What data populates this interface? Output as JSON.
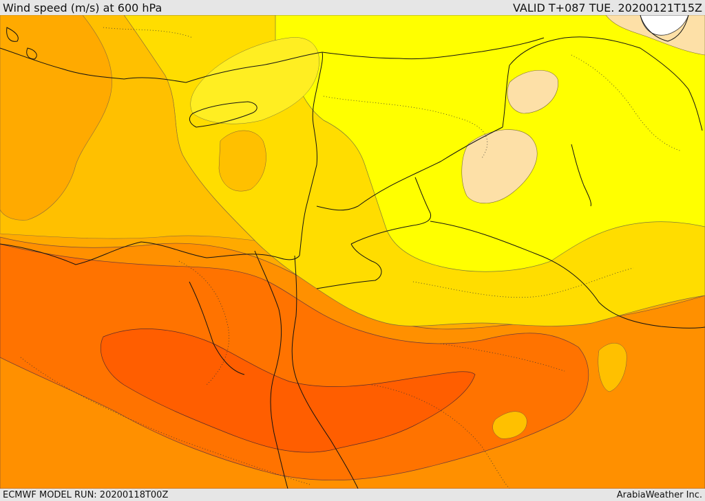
{
  "header": {
    "title": "Wind speed (m/s) at 600 hPa",
    "valid": "VALID T+087 TUE. 20200121T15Z"
  },
  "footer": {
    "model_run": "ECMWF MODEL RUN: 20200118T00Z",
    "credit": "ArabiaWeather Inc."
  },
  "map": {
    "palette": {
      "very_light": "#fde0a7",
      "yellow": "#ffff00",
      "light_yellow": "#ffee22",
      "gold": "#ffdd00",
      "light_orange": "#ffc000",
      "orange": "#ffaa00",
      "dark_orange": "#ff9000",
      "deep_orange": "#ff7300",
      "red_orange": "#ff5e00",
      "white": "#ffffff"
    }
  }
}
